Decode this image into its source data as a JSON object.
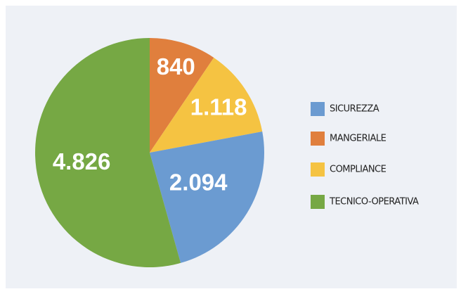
{
  "chart_data": {
    "type": "pie",
    "categories": [
      "MANGERIALE",
      "COMPLIANCE",
      "SICUREZZA",
      "TECNICO-OPERATIVA"
    ],
    "values": [
      840,
      1118,
      2094,
      4826
    ],
    "value_labels": [
      "840",
      "1.118",
      "2.094",
      "4.826"
    ],
    "colors": [
      "#e07f3d",
      "#f5c342",
      "#6b9bd1",
      "#76a844"
    ]
  }
}
